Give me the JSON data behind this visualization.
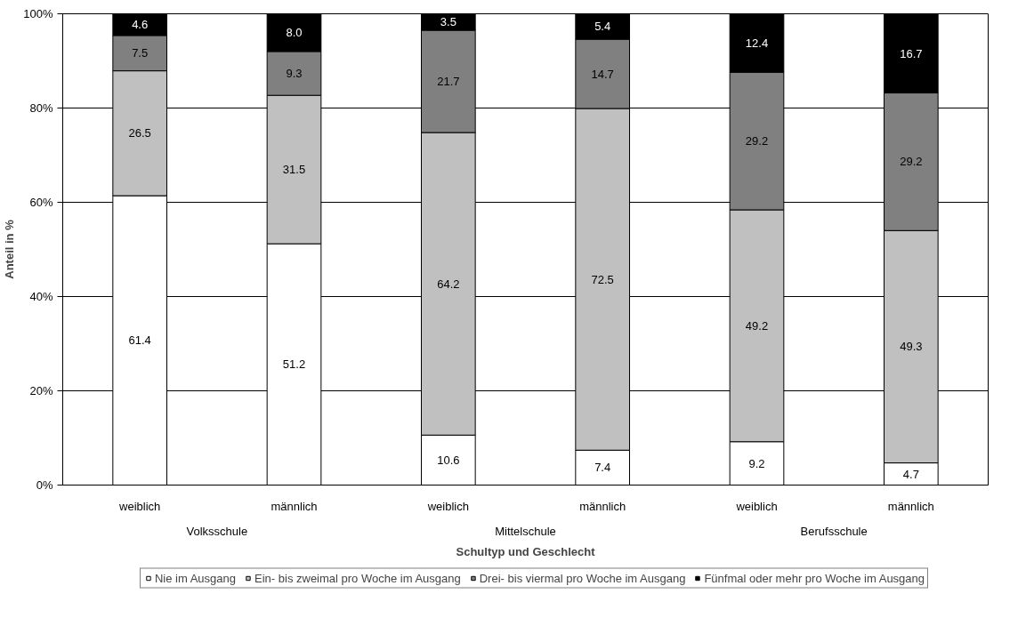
{
  "chart_data": {
    "type": "bar",
    "stacked": true,
    "xlabel": "Schultyp und Geschlecht",
    "ylabel": "Anteil in %",
    "categories": [
      [
        "Volksschule",
        "weiblich"
      ],
      [
        null,
        "männlich"
      ],
      [
        "Mittelschule",
        "weiblich"
      ],
      [
        null,
        "männlich"
      ],
      [
        "Berufsschule",
        "weiblich"
      ],
      [
        null,
        "männlich"
      ]
    ],
    "series": [
      {
        "name": "Nie im Ausgang",
        "color": "#ffffff",
        "values": [
          61.4,
          51.2,
          10.6,
          7.4,
          9.2,
          4.7
        ],
        "value_labels": [
          "61.4",
          "51.2",
          "10.6",
          "7.4",
          "9.2",
          "4.7"
        ]
      },
      {
        "name": "Ein- bis zweimal pro Woche im Ausgang",
        "color": "#c0c0c0",
        "values": [
          26.5,
          31.5,
          64.2,
          72.5,
          49.2,
          49.3
        ],
        "value_labels": [
          "26.5",
          "31.5",
          "64.2",
          "72.5",
          "49.2",
          "49.3"
        ]
      },
      {
        "name": "Drei- bis viermal pro Woche im Ausgang",
        "color": "#808080",
        "values": [
          7.5,
          9.3,
          21.7,
          14.7,
          29.2,
          29.2
        ],
        "value_labels": [
          "7.5",
          "9.3",
          "21.7",
          "14.7",
          "29.2",
          "29.2"
        ]
      },
      {
        "name": "Fünfmal oder mehr pro Woche im Ausgang",
        "color": "#000000",
        "values": [
          4.6,
          8.0,
          3.5,
          5.4,
          12.4,
          16.7
        ],
        "value_labels": [
          "4.6",
          "8.0",
          "3.5",
          "5.4",
          "12.4",
          "16.7"
        ]
      }
    ],
    "ylim": [
      0,
      100
    ],
    "yticks": [
      {
        "value": 0,
        "label": "0%"
      },
      {
        "value": 20,
        "label": "20%"
      },
      {
        "value": 40,
        "label": "40%"
      },
      {
        "value": 60,
        "label": "60%"
      },
      {
        "value": 80,
        "label": "80%"
      },
      {
        "value": 100,
        "label": "100%"
      }
    ],
    "grid": "y",
    "legend": "bottom"
  }
}
